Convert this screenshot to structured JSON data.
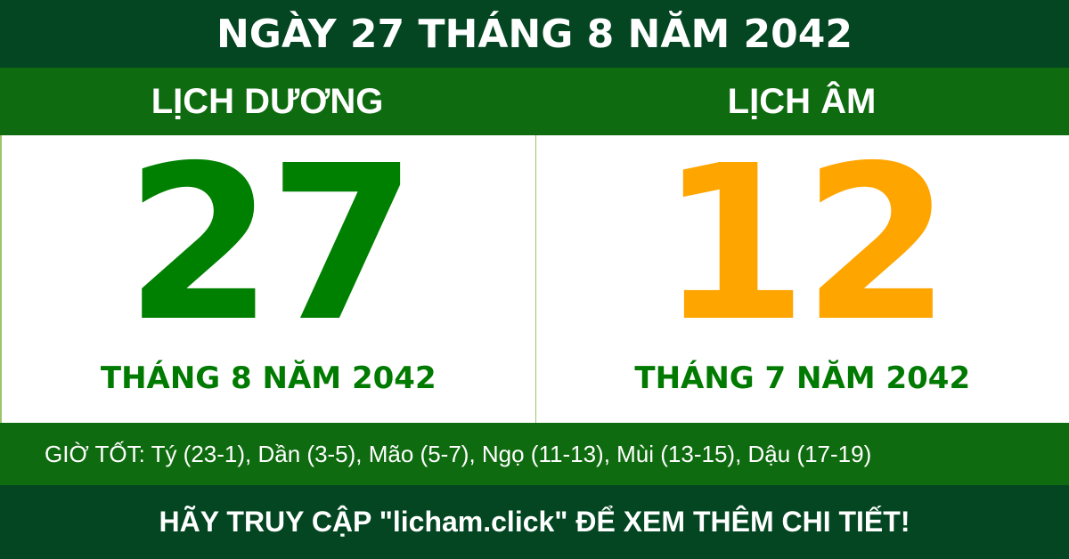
{
  "header": {
    "title": "NGÀY 27 THÁNG 8 NĂM 2042"
  },
  "solar": {
    "label": "LỊCH DƯƠNG",
    "day": "27",
    "month_year": "THÁNG 8 NĂM 2042",
    "color": "#008000"
  },
  "lunar": {
    "label": "LỊCH ÂM",
    "day": "12",
    "month_year": "THÁNG 7 NĂM 2042",
    "color": "#FFA500"
  },
  "good_hours": "GIỜ TỐT: Tý (23-1), Dần (3-5), Mão (5-7), Ngọ (11-13), Mùi (13-15), Dậu (17-19)",
  "footer": {
    "text": "HÃY TRUY CẬP \"licham.click\" ĐỂ XEM THÊM CHI TIẾT!"
  }
}
